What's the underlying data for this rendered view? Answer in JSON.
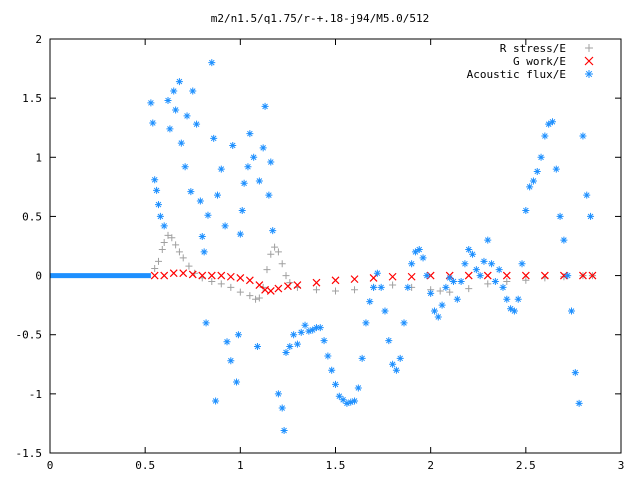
{
  "chart_data": {
    "type": "scatter",
    "title": "m2/n1.5/q1.75/r-+.18-j94/M5.0/512",
    "xlabel": "",
    "ylabel": "",
    "xlim": [
      0,
      3
    ],
    "ylim": [
      -1.5,
      2
    ],
    "grid": false,
    "legend_position": "top-right",
    "x_ticks": [
      "0",
      "0.5",
      "1",
      "1.5",
      "2",
      "2.5",
      "3"
    ],
    "y_ticks": [
      "-1.5",
      "-1",
      "-0.5",
      "0",
      "0.5",
      "1",
      "1.5",
      "2"
    ],
    "series": [
      {
        "name": "R stress/E",
        "marker": "+",
        "color": "#a0a0a0",
        "points": [
          [
            0.55,
            0.06
          ],
          [
            0.57,
            0.12
          ],
          [
            0.59,
            0.22
          ],
          [
            0.6,
            0.28
          ],
          [
            0.62,
            0.34
          ],
          [
            0.64,
            0.32
          ],
          [
            0.66,
            0.26
          ],
          [
            0.68,
            0.2
          ],
          [
            0.7,
            0.15
          ],
          [
            0.73,
            0.08
          ],
          [
            0.76,
            0.02
          ],
          [
            0.8,
            -0.02
          ],
          [
            0.85,
            -0.05
          ],
          [
            0.9,
            -0.07
          ],
          [
            0.95,
            -0.1
          ],
          [
            1.0,
            -0.14
          ],
          [
            1.05,
            -0.17
          ],
          [
            1.08,
            -0.2
          ],
          [
            1.1,
            -0.19
          ],
          [
            1.12,
            -0.1
          ],
          [
            1.14,
            0.05
          ],
          [
            1.16,
            0.18
          ],
          [
            1.18,
            0.24
          ],
          [
            1.2,
            0.2
          ],
          [
            1.22,
            0.1
          ],
          [
            1.24,
            0.0
          ],
          [
            1.26,
            -0.06
          ],
          [
            1.3,
            -0.1
          ],
          [
            1.4,
            -0.12
          ],
          [
            1.5,
            -0.13
          ],
          [
            1.6,
            -0.12
          ],
          [
            1.7,
            -0.1
          ],
          [
            1.8,
            -0.08
          ],
          [
            1.9,
            -0.1
          ],
          [
            2.0,
            -0.12
          ],
          [
            2.05,
            -0.13
          ],
          [
            2.1,
            -0.14
          ],
          [
            2.2,
            -0.11
          ],
          [
            2.3,
            -0.07
          ],
          [
            2.4,
            -0.05
          ],
          [
            2.5,
            -0.04
          ],
          [
            2.6,
            -0.02
          ],
          [
            2.7,
            -0.01
          ],
          [
            2.8,
            0.0
          ],
          [
            2.85,
            0.0
          ]
        ]
      },
      {
        "name": "G work/E",
        "marker": "x",
        "color": "#ff0000",
        "points": [
          [
            0.55,
            0.0
          ],
          [
            0.6,
            0.0
          ],
          [
            0.65,
            0.02
          ],
          [
            0.7,
            0.02
          ],
          [
            0.75,
            0.01
          ],
          [
            0.8,
            0.0
          ],
          [
            0.85,
            0.0
          ],
          [
            0.9,
            0.0
          ],
          [
            0.95,
            -0.01
          ],
          [
            1.0,
            -0.02
          ],
          [
            1.05,
            -0.04
          ],
          [
            1.1,
            -0.08
          ],
          [
            1.13,
            -0.12
          ],
          [
            1.16,
            -0.13
          ],
          [
            1.2,
            -0.11
          ],
          [
            1.25,
            -0.09
          ],
          [
            1.3,
            -0.08
          ],
          [
            1.4,
            -0.06
          ],
          [
            1.5,
            -0.04
          ],
          [
            1.6,
            -0.03
          ],
          [
            1.7,
            -0.02
          ],
          [
            1.8,
            -0.01
          ],
          [
            1.9,
            -0.01
          ],
          [
            2.0,
            0.0
          ],
          [
            2.1,
            0.0
          ],
          [
            2.2,
            0.0
          ],
          [
            2.3,
            0.0
          ],
          [
            2.4,
            0.0
          ],
          [
            2.5,
            0.0
          ],
          [
            2.6,
            0.0
          ],
          [
            2.7,
            0.0
          ],
          [
            2.8,
            0.0
          ],
          [
            2.85,
            0.0
          ]
        ]
      },
      {
        "name": "Acoustic flux/E",
        "marker": "*",
        "color": "#1e90ff",
        "points": [
          [
            0.53,
            1.46
          ],
          [
            0.54,
            1.29
          ],
          [
            0.55,
            0.81
          ],
          [
            0.56,
            0.72
          ],
          [
            0.57,
            0.6
          ],
          [
            0.58,
            0.5
          ],
          [
            0.6,
            0.42
          ],
          [
            0.62,
            1.48
          ],
          [
            0.63,
            1.24
          ],
          [
            0.65,
            1.56
          ],
          [
            0.66,
            1.4
          ],
          [
            0.68,
            1.64
          ],
          [
            0.69,
            1.12
          ],
          [
            0.71,
            0.92
          ],
          [
            0.72,
            1.35
          ],
          [
            0.74,
            0.71
          ],
          [
            0.75,
            1.56
          ],
          [
            0.77,
            1.28
          ],
          [
            0.79,
            0.63
          ],
          [
            0.8,
            0.33
          ],
          [
            0.81,
            0.2
          ],
          [
            0.82,
            -0.4
          ],
          [
            0.83,
            0.51
          ],
          [
            0.85,
            1.8
          ],
          [
            0.86,
            1.16
          ],
          [
            0.87,
            -1.06
          ],
          [
            0.88,
            0.68
          ],
          [
            0.9,
            0.9
          ],
          [
            0.92,
            0.42
          ],
          [
            0.93,
            -0.56
          ],
          [
            0.95,
            -0.72
          ],
          [
            0.96,
            1.1
          ],
          [
            0.98,
            -0.9
          ],
          [
            0.99,
            -0.5
          ],
          [
            1.0,
            0.35
          ],
          [
            1.01,
            0.55
          ],
          [
            1.02,
            0.78
          ],
          [
            1.04,
            0.92
          ],
          [
            1.05,
            1.2
          ],
          [
            1.07,
            1.0
          ],
          [
            1.09,
            -0.6
          ],
          [
            1.1,
            0.8
          ],
          [
            1.12,
            1.08
          ],
          [
            1.13,
            1.43
          ],
          [
            1.15,
            0.68
          ],
          [
            1.16,
            0.96
          ],
          [
            1.17,
            0.38
          ],
          [
            1.2,
            -1.0
          ],
          [
            1.22,
            -1.12
          ],
          [
            1.23,
            -1.31
          ],
          [
            1.24,
            -0.65
          ],
          [
            1.26,
            -0.6
          ],
          [
            1.28,
            -0.5
          ],
          [
            1.3,
            -0.58
          ],
          [
            1.32,
            -0.48
          ],
          [
            1.34,
            -0.42
          ],
          [
            1.36,
            -0.47
          ],
          [
            1.38,
            -0.46
          ],
          [
            1.4,
            -0.44
          ],
          [
            1.42,
            -0.44
          ],
          [
            1.44,
            -0.55
          ],
          [
            1.46,
            -0.68
          ],
          [
            1.48,
            -0.8
          ],
          [
            1.5,
            -0.92
          ],
          [
            1.52,
            -1.02
          ],
          [
            1.54,
            -1.05
          ],
          [
            1.56,
            -1.08
          ],
          [
            1.58,
            -1.07
          ],
          [
            1.6,
            -1.06
          ],
          [
            1.62,
            -0.95
          ],
          [
            1.64,
            -0.7
          ],
          [
            1.66,
            -0.4
          ],
          [
            1.68,
            -0.22
          ],
          [
            1.7,
            -0.1
          ],
          [
            1.72,
            0.02
          ],
          [
            1.74,
            -0.1
          ],
          [
            1.76,
            -0.3
          ],
          [
            1.78,
            -0.55
          ],
          [
            1.8,
            -0.75
          ],
          [
            1.82,
            -0.8
          ],
          [
            1.84,
            -0.7
          ],
          [
            1.86,
            -0.4
          ],
          [
            1.88,
            -0.1
          ],
          [
            1.9,
            0.1
          ],
          [
            1.92,
            0.2
          ],
          [
            1.94,
            0.22
          ],
          [
            1.96,
            0.15
          ],
          [
            1.98,
            0.0
          ],
          [
            2.0,
            -0.15
          ],
          [
            2.02,
            -0.3
          ],
          [
            2.04,
            -0.35
          ],
          [
            2.06,
            -0.25
          ],
          [
            2.08,
            -0.1
          ],
          [
            2.1,
            -0.02
          ],
          [
            2.12,
            -0.05
          ],
          [
            2.14,
            -0.2
          ],
          [
            2.16,
            -0.05
          ],
          [
            2.18,
            0.1
          ],
          [
            2.2,
            0.22
          ],
          [
            2.22,
            0.18
          ],
          [
            2.24,
            0.05
          ],
          [
            2.26,
            0.0
          ],
          [
            2.28,
            0.12
          ],
          [
            2.3,
            0.3
          ],
          [
            2.32,
            0.1
          ],
          [
            2.34,
            -0.05
          ],
          [
            2.36,
            0.05
          ],
          [
            2.38,
            -0.1
          ],
          [
            2.4,
            -0.2
          ],
          [
            2.42,
            -0.28
          ],
          [
            2.44,
            -0.3
          ],
          [
            2.46,
            -0.2
          ],
          [
            2.48,
            0.1
          ],
          [
            2.5,
            0.55
          ],
          [
            2.52,
            0.75
          ],
          [
            2.54,
            0.8
          ],
          [
            2.56,
            0.88
          ],
          [
            2.58,
            1.0
          ],
          [
            2.6,
            1.18
          ],
          [
            2.62,
            1.28
          ],
          [
            2.64,
            1.3
          ],
          [
            2.66,
            0.9
          ],
          [
            2.68,
            0.5
          ],
          [
            2.7,
            0.3
          ],
          [
            2.72,
            0.0
          ],
          [
            2.74,
            -0.3
          ],
          [
            2.76,
            -0.82
          ],
          [
            2.78,
            -1.08
          ],
          [
            2.8,
            1.18
          ],
          [
            2.82,
            0.68
          ],
          [
            2.84,
            0.5
          ]
        ]
      }
    ]
  }
}
